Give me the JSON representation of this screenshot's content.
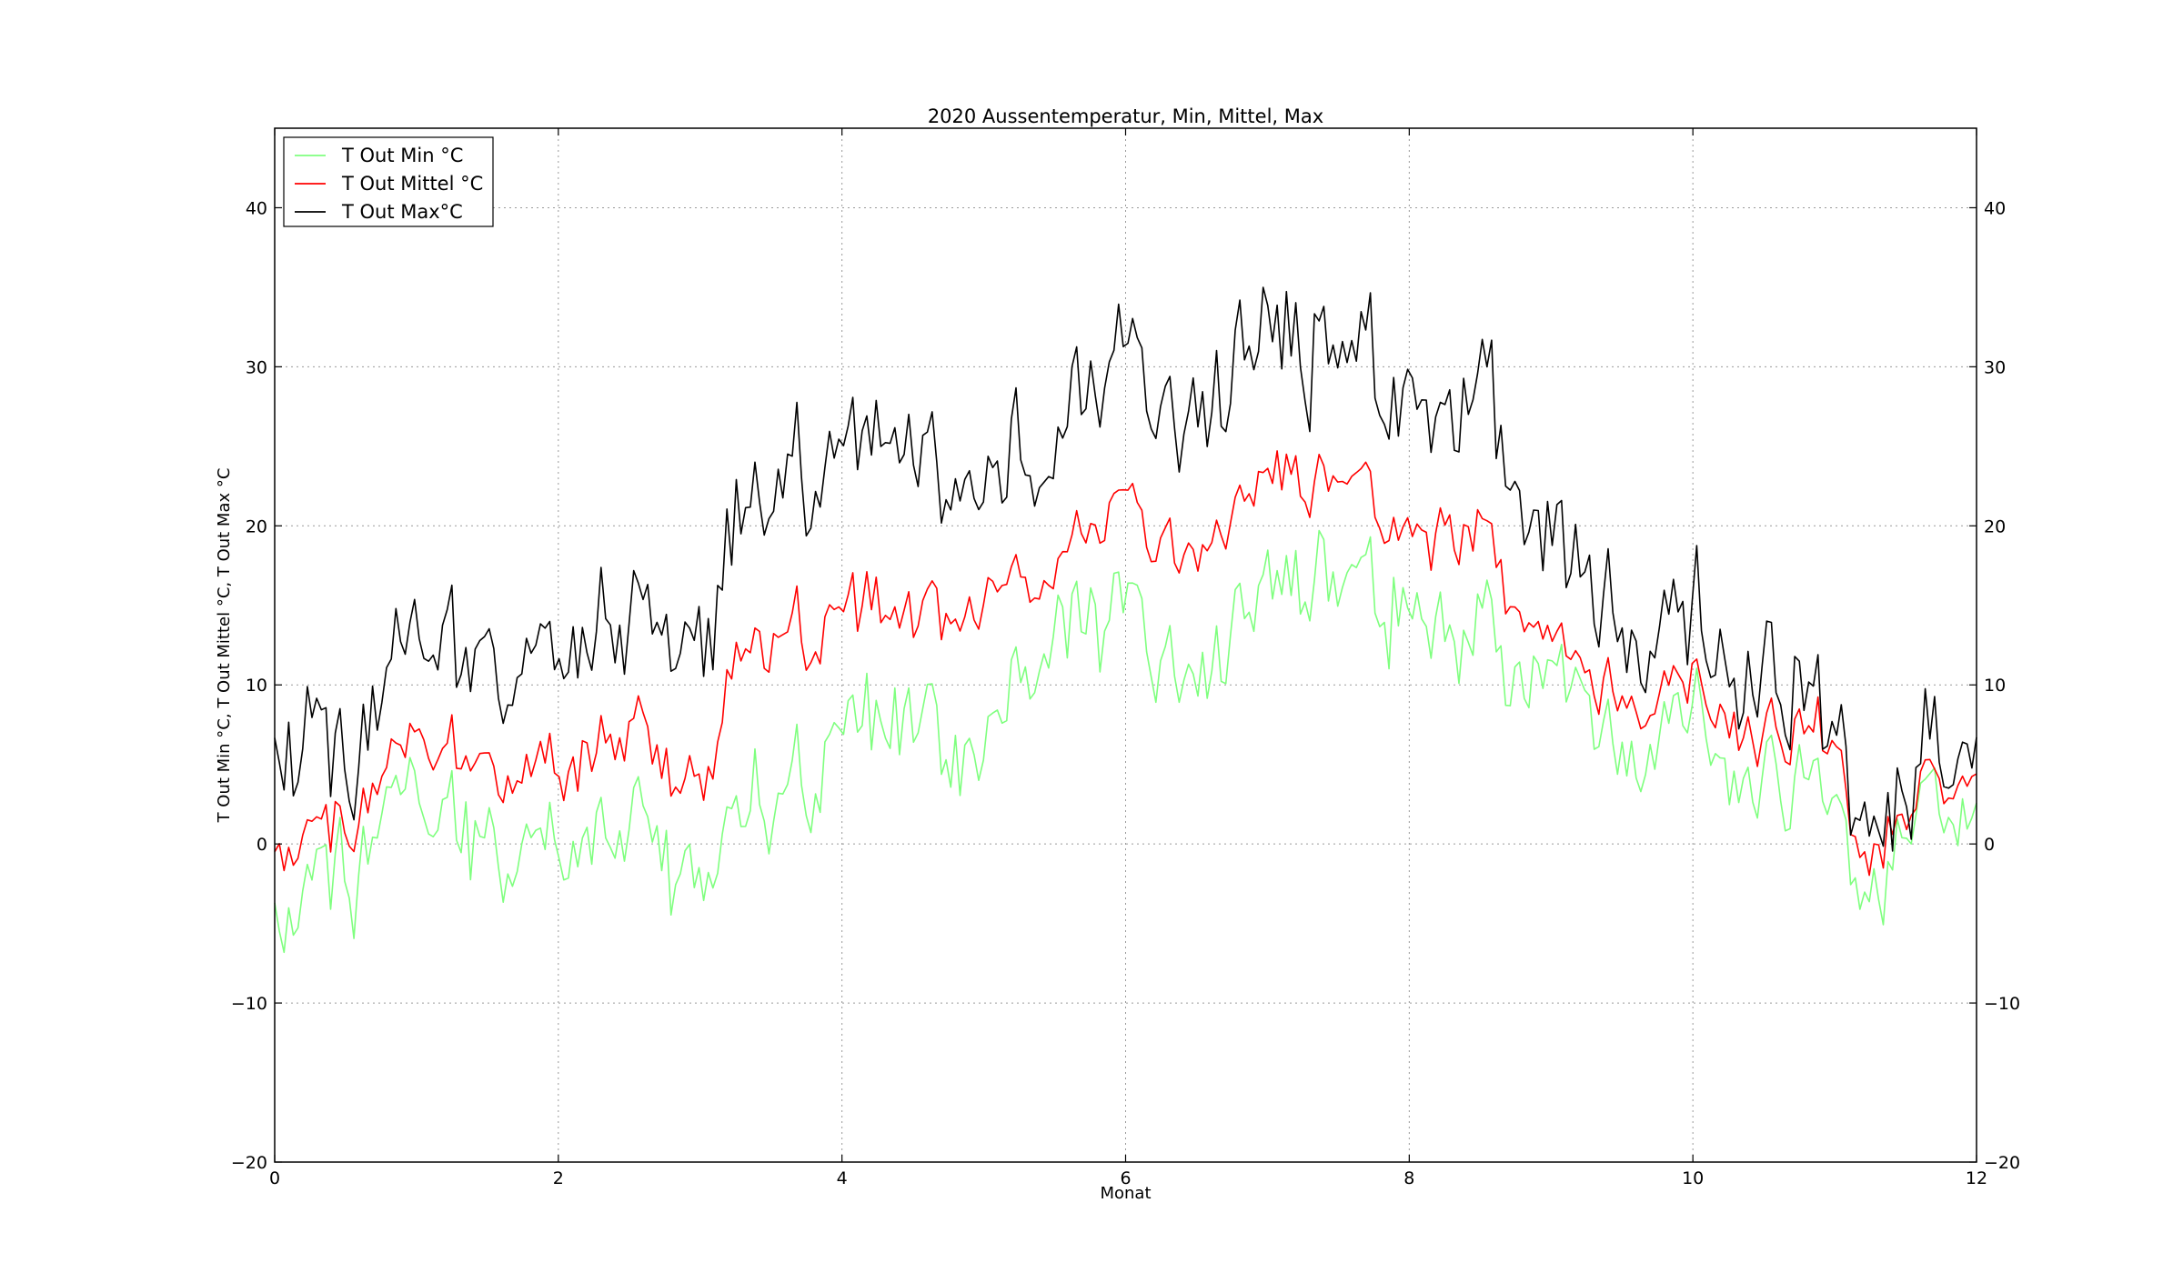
{
  "chart_data": {
    "type": "line",
    "title": "2020 Aussentemperatur, Min, Mittel, Max",
    "xlabel": "Monat",
    "ylabel": "T Out Min °C, T Out Mittel °C, T Out Max °C",
    "xlim": [
      0,
      12
    ],
    "ylim": [
      -20,
      45
    ],
    "xticks": [
      "0",
      "2",
      "4",
      "6",
      "8",
      "10",
      "12"
    ],
    "yticks": [
      "−20",
      "−10",
      "0",
      "10",
      "20",
      "30",
      "40"
    ],
    "yticks_right": [
      "−20",
      "−10",
      "0",
      "10",
      "20",
      "30",
      "40"
    ],
    "grid": true,
    "legend_position": "top-left",
    "series": [
      {
        "name": "T Out Min °C",
        "color": "#7fff7f",
        "anchors": [
          [
            0,
            -6
          ],
          [
            0.5,
            -3
          ],
          [
            1.0,
            2
          ],
          [
            1.5,
            0
          ],
          [
            2.0,
            -1
          ],
          [
            2.5,
            1
          ],
          [
            3.0,
            -3
          ],
          [
            3.3,
            3
          ],
          [
            3.5,
            2
          ],
          [
            4.0,
            6
          ],
          [
            4.5,
            7
          ],
          [
            4.8,
            5
          ],
          [
            5.0,
            8
          ],
          [
            5.5,
            14
          ],
          [
            6.0,
            14
          ],
          [
            6.5,
            11
          ],
          [
            7.0,
            16
          ],
          [
            7.5,
            17
          ],
          [
            8.0,
            15
          ],
          [
            8.5,
            12
          ],
          [
            9.0,
            10
          ],
          [
            9.5,
            6
          ],
          [
            10.0,
            8
          ],
          [
            10.5,
            4
          ],
          [
            11.0,
            4
          ],
          [
            11.2,
            -3
          ],
          [
            11.5,
            2
          ],
          [
            12.0,
            2
          ]
        ],
        "noise": 3.2
      },
      {
        "name": "T Out Mittel °C",
        "color": "#ff0000",
        "anchors": [
          [
            0,
            -1
          ],
          [
            0.5,
            0
          ],
          [
            1.0,
            6
          ],
          [
            1.5,
            5
          ],
          [
            2.0,
            4
          ],
          [
            2.5,
            7
          ],
          [
            3.0,
            3
          ],
          [
            3.3,
            12
          ],
          [
            3.5,
            13
          ],
          [
            4.0,
            14
          ],
          [
            4.5,
            14
          ],
          [
            4.8,
            14
          ],
          [
            5.0,
            17
          ],
          [
            5.5,
            18
          ],
          [
            6.0,
            21
          ],
          [
            6.5,
            19
          ],
          [
            7.0,
            23
          ],
          [
            7.5,
            23
          ],
          [
            8.0,
            20
          ],
          [
            8.5,
            19
          ],
          [
            9.0,
            12
          ],
          [
            9.5,
            9
          ],
          [
            10.0,
            10
          ],
          [
            10.5,
            7
          ],
          [
            11.0,
            7
          ],
          [
            11.2,
            -1
          ],
          [
            11.5,
            3
          ],
          [
            12.0,
            4
          ]
        ],
        "noise": 2.2
      },
      {
        "name": "T Out Max°C",
        "color": "#000000",
        "anchors": [
          [
            0,
            5
          ],
          [
            0.5,
            3
          ],
          [
            1.0,
            12
          ],
          [
            1.5,
            11
          ],
          [
            2.0,
            11
          ],
          [
            2.5,
            14
          ],
          [
            3.0,
            12
          ],
          [
            3.3,
            21
          ],
          [
            3.5,
            22
          ],
          [
            4.0,
            24
          ],
          [
            4.5,
            24
          ],
          [
            4.8,
            22
          ],
          [
            5.0,
            25
          ],
          [
            5.5,
            26
          ],
          [
            6.0,
            30
          ],
          [
            6.5,
            28
          ],
          [
            7.0,
            32
          ],
          [
            7.5,
            31
          ],
          [
            8.0,
            28
          ],
          [
            8.5,
            27
          ],
          [
            9.0,
            18
          ],
          [
            9.5,
            13
          ],
          [
            10.0,
            14
          ],
          [
            10.5,
            10
          ],
          [
            11.0,
            8
          ],
          [
            11.2,
            1
          ],
          [
            11.5,
            5
          ],
          [
            12.0,
            6
          ]
        ],
        "noise": 3.8
      }
    ]
  }
}
